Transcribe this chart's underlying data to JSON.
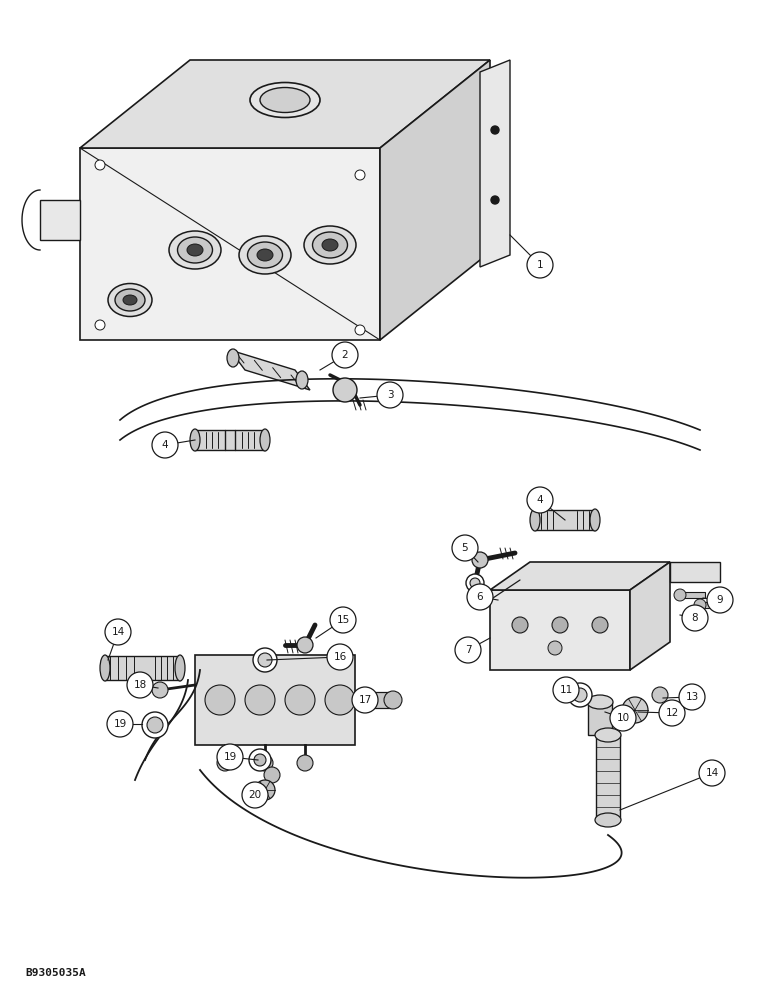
{
  "background_color": "#ffffff",
  "line_color": "#1a1a1a",
  "figure_width": 7.72,
  "figure_height": 10.0,
  "dpi": 100,
  "watermark": "B9305035A",
  "gray": "#888888"
}
